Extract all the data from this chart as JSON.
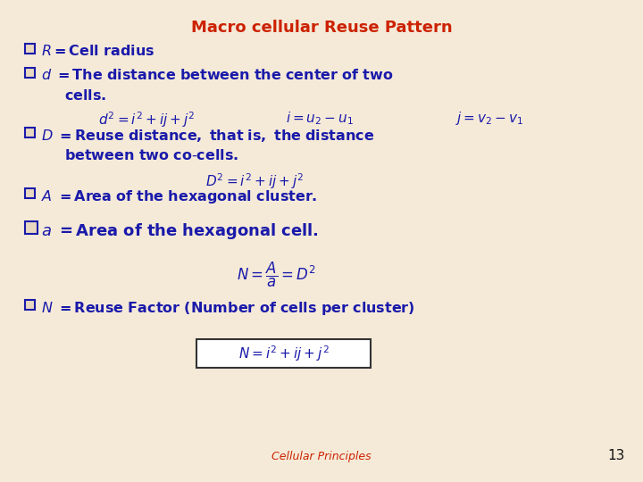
{
  "title": "Macro cellular Reuse Pattern",
  "title_color": "#cc2200",
  "background_color": "#f5ead8",
  "text_color": "#1a1aaa",
  "footer_text": "Cellular Principles",
  "footer_color": "#cc2200",
  "page_number": "13",
  "page_color": "#111111",
  "checkbox_color": "#1a1aaa",
  "checkbox_fill": "#e8d8c0",
  "box_formula_color": "#333333",
  "fs_title": 13,
  "fs_bullet": 11.5,
  "fs_formula": 11
}
